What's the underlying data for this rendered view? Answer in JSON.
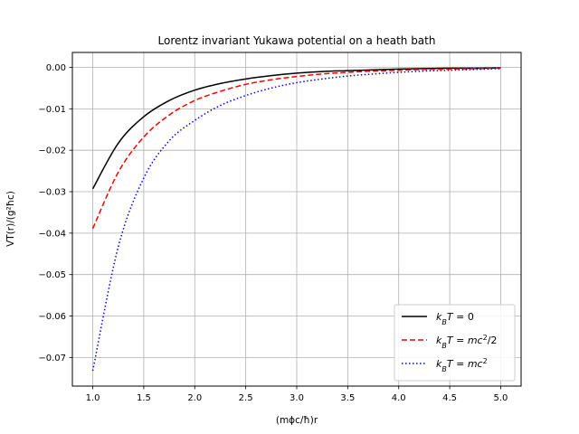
{
  "chart_data": {
    "type": "line",
    "title": "Lorentz invariant Yukawa potential on a heath bath",
    "xlabel": "(mϕc/ħ)r",
    "ylabel": "VT(r)/(g²ħc)",
    "xlim": [
      0.8,
      5.2
    ],
    "ylim": [
      -0.0769,
      0.0036
    ],
    "x_ticks": [
      1.0,
      1.5,
      2.0,
      2.5,
      3.0,
      3.5,
      4.0,
      4.5,
      5.0
    ],
    "x_tick_labels": [
      "1.0",
      "1.5",
      "2.0",
      "2.5",
      "3.0",
      "3.5",
      "4.0",
      "4.5",
      "5.0"
    ],
    "y_ticks": [
      0.0,
      -0.01,
      -0.02,
      -0.03,
      -0.04,
      -0.05,
      -0.06,
      -0.07
    ],
    "y_tick_labels": [
      "0.00",
      "−0.01",
      "−0.02",
      "−0.03",
      "−0.04",
      "−0.05",
      "−0.06",
      "−0.07"
    ],
    "grid": true,
    "legend_position": "lower-right",
    "x": [
      1.0,
      1.25,
      1.5,
      1.75,
      2.0,
      2.25,
      2.5,
      2.75,
      3.0,
      3.25,
      3.5,
      3.75,
      4.0,
      4.25,
      4.5,
      4.75,
      5.0
    ],
    "series": [
      {
        "name": "kBT = 0",
        "color": "#000000",
        "dash": "solid",
        "values": [
          -0.0293,
          -0.0183,
          -0.0119,
          -0.008,
          -0.0055,
          -0.0039,
          -0.0028,
          -0.002,
          -0.0014,
          -0.001,
          -0.0008,
          -0.0006,
          -0.0004,
          -0.0003,
          -0.0002,
          -0.0002,
          -0.0001
        ]
      },
      {
        "name": "kBT = mc²/2",
        "color": "#ff0000",
        "dash": "dashed",
        "values": [
          -0.0389,
          -0.0253,
          -0.0168,
          -0.0115,
          -0.008,
          -0.0058,
          -0.0041,
          -0.003,
          -0.0022,
          -0.0016,
          -0.0012,
          -0.0009,
          -0.0007,
          -0.0005,
          -0.0004,
          -0.0003,
          -0.0002
        ]
      },
      {
        "name": "kBT = mc²",
        "color": "#0000ff",
        "dash": "dotted",
        "values": [
          -0.0732,
          -0.0433,
          -0.0267,
          -0.0177,
          -0.0128,
          -0.0092,
          -0.0068,
          -0.005,
          -0.0037,
          -0.0028,
          -0.0021,
          -0.0016,
          -0.0012,
          -0.0009,
          -0.0007,
          -0.0005,
          -0.0003
        ]
      }
    ]
  }
}
